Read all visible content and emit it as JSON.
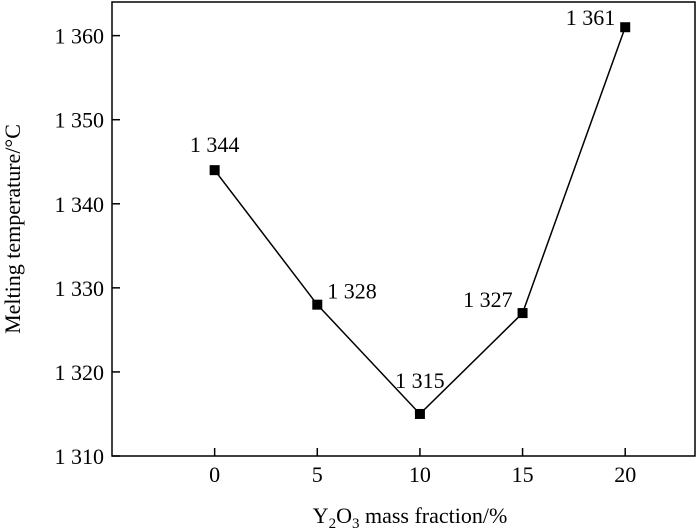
{
  "chart_data": {
    "type": "line",
    "x": [
      0,
      5,
      10,
      15,
      20
    ],
    "series": [
      {
        "values": [
          1344,
          1328,
          1315,
          1327,
          1361
        ],
        "marker": "square",
        "color": "#000000"
      }
    ],
    "data_labels": [
      "1 344",
      "1 328",
      "1 315",
      "1 327",
      "1 361"
    ],
    "xlabel_parts": {
      "base": "Y",
      "sub1": "2",
      "mid": "O",
      "sub2": "3",
      "rest": " mass fraction/%"
    },
    "ylabel": "Melting temperature/°C",
    "xticks": [
      0,
      5,
      10,
      15,
      20
    ],
    "xtick_labels": [
      "0",
      "5",
      "10",
      "15",
      "20"
    ],
    "yticks": [
      1310,
      1320,
      1330,
      1340,
      1350,
      1360
    ],
    "ytick_labels": [
      "1 310",
      "1 320",
      "1 330",
      "1 340",
      "1 350",
      "1 360"
    ],
    "xlim": [
      -5,
      23.4
    ],
    "ylim": [
      1310,
      1364
    ],
    "grid": false,
    "legend": "none"
  }
}
